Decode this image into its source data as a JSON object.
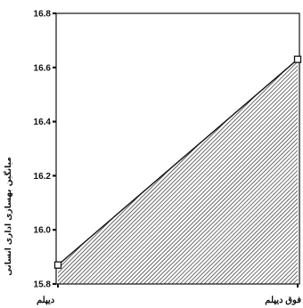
{
  "chart_data": {
    "type": "area",
    "categories": [
      "دیپلم",
      "فوق دیپلم"
    ],
    "values": [
      15.87,
      16.63
    ],
    "title": "",
    "xlabel": "",
    "ylabel": "میانگین بهسازی اداری انسانی",
    "ylim": [
      15.8,
      16.8
    ],
    "yticks": [
      "15.8",
      "16.0",
      "16.2",
      "16.4",
      "16.6",
      "16.8"
    ],
    "grid": false,
    "fill_pattern": "diagonal-hatch",
    "colors": {
      "line": "#111111",
      "hatch": "#222222",
      "background": "#ffffff"
    }
  }
}
